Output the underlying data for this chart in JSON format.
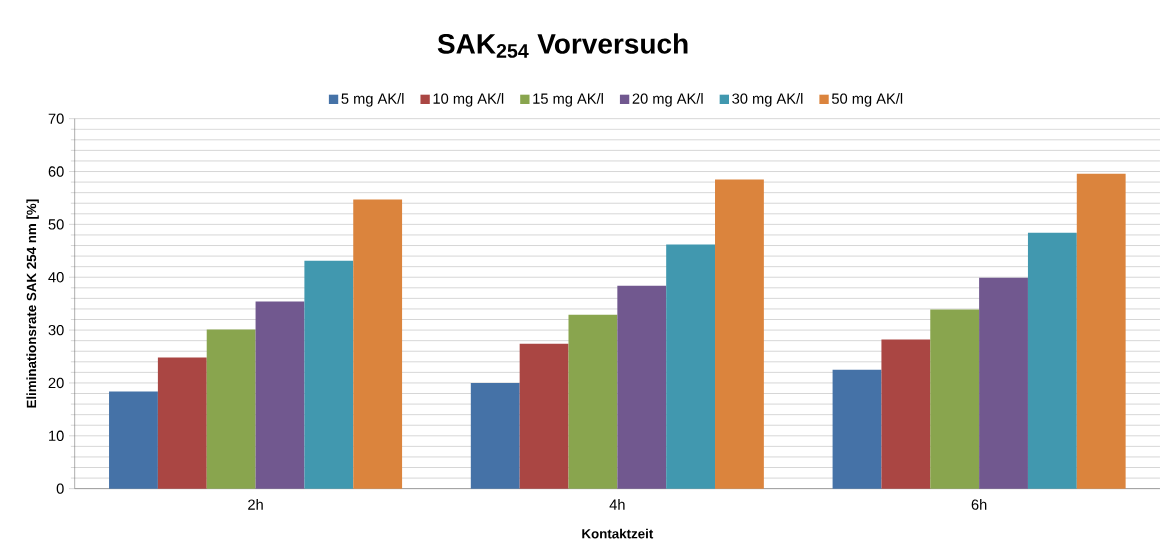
{
  "chart_data": {
    "type": "bar",
    "title": "SAK$_{254}$ Vorversuch",
    "xlabel": "Kontaktzeit",
    "ylabel": "Eliminationsrate  SAK 254 nm [%]",
    "categories": [
      "2h",
      "4h",
      "6h"
    ],
    "series": [
      {
        "name": "5 mg AK/l",
        "color": "#4572a7",
        "values": [
          18.4,
          20.0,
          22.5
        ]
      },
      {
        "name": "10 mg AK/l",
        "color": "#aa4643",
        "values": [
          24.8,
          27.4,
          28.2
        ]
      },
      {
        "name": "15 mg AK/l",
        "color": "#89a54e",
        "values": [
          30.1,
          32.9,
          33.9
        ]
      },
      {
        "name": "20 mg AK/l",
        "color": "#71588f",
        "values": [
          35.4,
          38.4,
          39.9
        ]
      },
      {
        "name": "30 mg AK/l",
        "color": "#4198af",
        "values": [
          43.1,
          46.2,
          48.4
        ]
      },
      {
        "name": "50 mg AK/l",
        "color": "#db843d",
        "values": [
          54.7,
          58.5,
          59.6
        ]
      }
    ],
    "ylim": [
      0,
      70
    ],
    "yticks": [
      0,
      10,
      20,
      30,
      40,
      50,
      60,
      70
    ],
    "grid": "y",
    "legend": "top"
  }
}
